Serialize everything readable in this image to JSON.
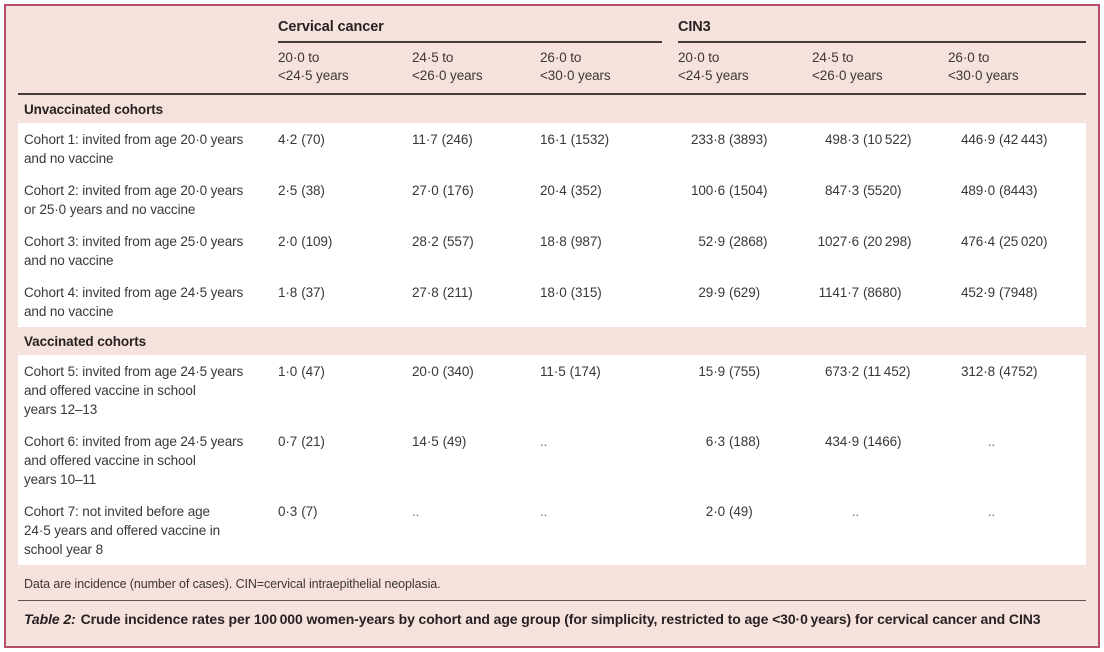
{
  "table": {
    "group_headers": [
      {
        "label": "Cervical cancer"
      },
      {
        "label": "CIN3"
      }
    ],
    "col_headers": [
      "20·0 to\n<24·5 years",
      "24·5 to\n<26·0 years",
      "26·0 to\n<30·0 years",
      "20·0 to\n<24·5 years",
      "24·5 to\n<26·0 years",
      "26·0 to\n<30·0 years"
    ],
    "sections": [
      {
        "title": "Unvaccinated cohorts",
        "rows": [
          {
            "label": "Cohort 1: invited from age 20·0 years\nand no vaccine",
            "cells": [
              {
                "v": "4·2",
                "n": "(70)"
              },
              {
                "v": "11·7",
                "n": "(246)"
              },
              {
                "v": "16·1",
                "n": "(1532)"
              },
              {
                "v": "233·8",
                "n": "(3893)"
              },
              {
                "v": "498·3",
                "n": "(10 522)"
              },
              {
                "v": "446·9",
                "n": "(42 443)"
              }
            ]
          },
          {
            "label": "Cohort 2: invited from age 20·0 years\nor 25·0 years and no vaccine",
            "cells": [
              {
                "v": "2·5",
                "n": "(38)"
              },
              {
                "v": "27·0",
                "n": "(176)"
              },
              {
                "v": "20·4",
                "n": "(352)"
              },
              {
                "v": "100·6",
                "n": "(1504)"
              },
              {
                "v": "847·3",
                "n": "(5520)"
              },
              {
                "v": "489·0",
                "n": "(8443)"
              }
            ]
          },
          {
            "label": "Cohort 3: invited from age 25·0 years\nand no vaccine",
            "cells": [
              {
                "v": "2·0",
                "n": "(109)"
              },
              {
                "v": "28·2",
                "n": "(557)"
              },
              {
                "v": "18·8",
                "n": "(987)"
              },
              {
                "v": "52·9",
                "n": "(2868)"
              },
              {
                "v": "1027·6",
                "n": "(20 298)"
              },
              {
                "v": "476·4",
                "n": "(25 020)"
              }
            ]
          },
          {
            "label": "Cohort 4: invited from age 24·5 years\nand no vaccine",
            "cells": [
              {
                "v": "1·8",
                "n": "(37)"
              },
              {
                "v": "27·8",
                "n": "(211)"
              },
              {
                "v": "18·0",
                "n": "(315)"
              },
              {
                "v": "29·9",
                "n": "(629)"
              },
              {
                "v": "1141·7",
                "n": "(8680)"
              },
              {
                "v": "452·9",
                "n": "(7948)"
              }
            ]
          }
        ]
      },
      {
        "title": "Vaccinated cohorts",
        "rows": [
          {
            "label": "Cohort 5: invited from age 24·5 years\nand offered vaccine in school\nyears 12–13",
            "cells": [
              {
                "v": "1·0",
                "n": "(47)"
              },
              {
                "v": "20·0",
                "n": "(340)"
              },
              {
                "v": "11·5",
                "n": "(174)"
              },
              {
                "v": "15·9",
                "n": "(755)"
              },
              {
                "v": "673·2",
                "n": "(11 452)"
              },
              {
                "v": "312·8",
                "n": "(4752)"
              }
            ]
          },
          {
            "label": "Cohort 6: invited from age 24·5 years\nand offered vaccine in school\nyears 10–11",
            "cells": [
              {
                "v": "0·7",
                "n": "(21)"
              },
              {
                "v": "14·5",
                "n": "(49)"
              },
              {
                "v": "..",
                "n": "",
                "dots": true
              },
              {
                "v": "6·3",
                "n": "(188)"
              },
              {
                "v": "434·9",
                "n": "(1466)"
              },
              {
                "v": "..",
                "n": "",
                "dots": true
              }
            ]
          },
          {
            "label": "Cohort 7: not invited before age\n24·5 years and offered vaccine in\nschool year 8",
            "cells": [
              {
                "v": "0·3",
                "n": "(7)"
              },
              {
                "v": "..",
                "n": "",
                "dots": true
              },
              {
                "v": "..",
                "n": "",
                "dots": true
              },
              {
                "v": "2·0",
                "n": "(49)"
              },
              {
                "v": "..",
                "n": "",
                "dots": true
              },
              {
                "v": "..",
                "n": "",
                "dots": true
              }
            ]
          }
        ]
      }
    ],
    "footnote": "Data are incidence (number of cases). CIN=cervical intraepithelial neoplasia.",
    "caption_label": "Table 2:",
    "caption_text": "Crude incidence rates per 100 000 women-years by cohort and age group (for simplicity, restricted to age <30·0 years) for cervical cancer and CIN3"
  },
  "colors": {
    "frame_border": "#b25169",
    "panel_background": "#f6e2dc",
    "row_background": "#ffffff",
    "rule": "#453c3e",
    "text": "#3c3638"
  }
}
